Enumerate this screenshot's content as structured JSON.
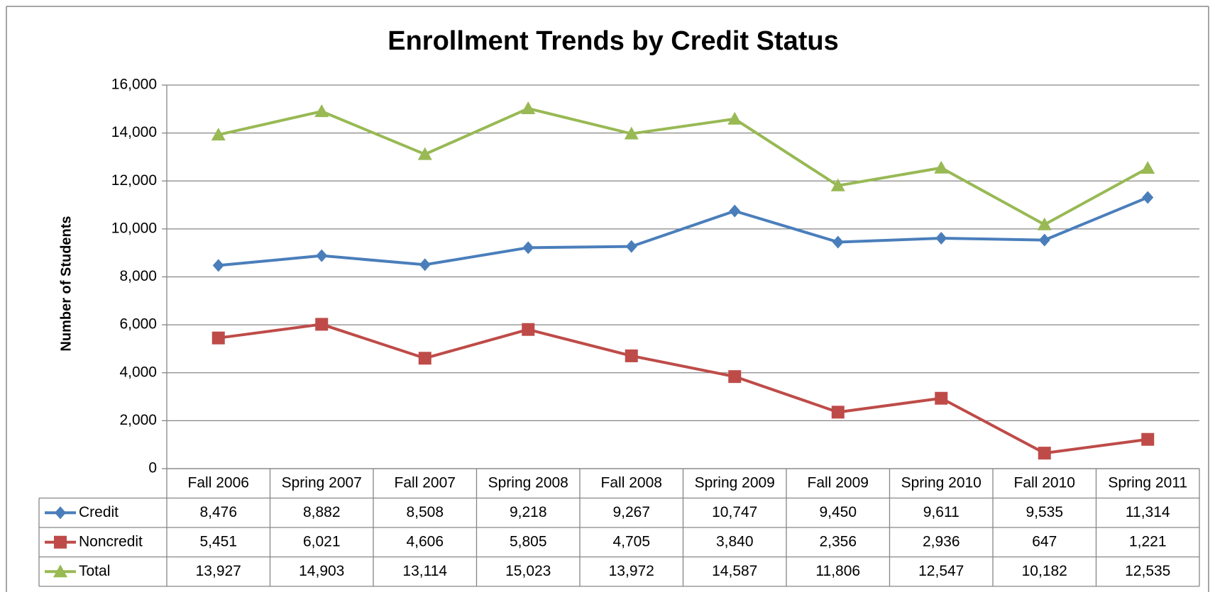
{
  "chart_data": {
    "type": "line",
    "title": "Enrollment Trends by Credit Status",
    "y_label": "Number of Students",
    "categories": [
      "Fall 2006",
      "Spring 2007",
      "Fall 2007",
      "Spring 2008",
      "Fall 2008",
      "Spring 2009",
      "Fall 2009",
      "Spring 2010",
      "Fall 2010",
      "Spring 2011"
    ],
    "series": [
      {
        "name": "Credit",
        "color": "#4a7ebb",
        "marker": "diamond",
        "values": [
          8476,
          8882,
          8508,
          9218,
          9267,
          10747,
          9450,
          9611,
          9535,
          11314
        ],
        "value_labels": [
          "8,476",
          "8,882",
          "8,508",
          "9,218",
          "9,267",
          "10,747",
          "9,450",
          "9,611",
          "9,535",
          "11,314"
        ]
      },
      {
        "name": "Noncredit",
        "color": "#be4b48",
        "marker": "square",
        "values": [
          5451,
          6021,
          4606,
          5805,
          4705,
          3840,
          2356,
          2936,
          647,
          1221
        ],
        "value_labels": [
          "5,451",
          "6,021",
          "4,606",
          "5,805",
          "4,705",
          "3,840",
          "2,356",
          "2,936",
          "647",
          "1,221"
        ]
      },
      {
        "name": "Total",
        "color": "#98b954",
        "marker": "triangle",
        "values": [
          13927,
          14903,
          13114,
          15023,
          13972,
          14587,
          11806,
          12547,
          10182,
          12535
        ],
        "value_labels": [
          "13,927",
          "14,903",
          "13,114",
          "15,023",
          "13,972",
          "14,587",
          "11,806",
          "12,547",
          "10,182",
          "12,535"
        ]
      }
    ],
    "ylim": [
      0,
      16000
    ],
    "yticks": [
      0,
      {
        "value": 2000,
        "label": "2,000"
      },
      {
        "value": 4000,
        "label": "4,000"
      },
      {
        "value": 6000,
        "label": "6,000"
      },
      {
        "value": 8000,
        "label": "8,000"
      },
      {
        "value": 10000,
        "label": "10,000"
      },
      {
        "value": 12000,
        "label": "12,000"
      },
      {
        "value": 14000,
        "label": "14,000"
      },
      {
        "value": 16000,
        "label": "16,000"
      }
    ],
    "grid": true
  }
}
